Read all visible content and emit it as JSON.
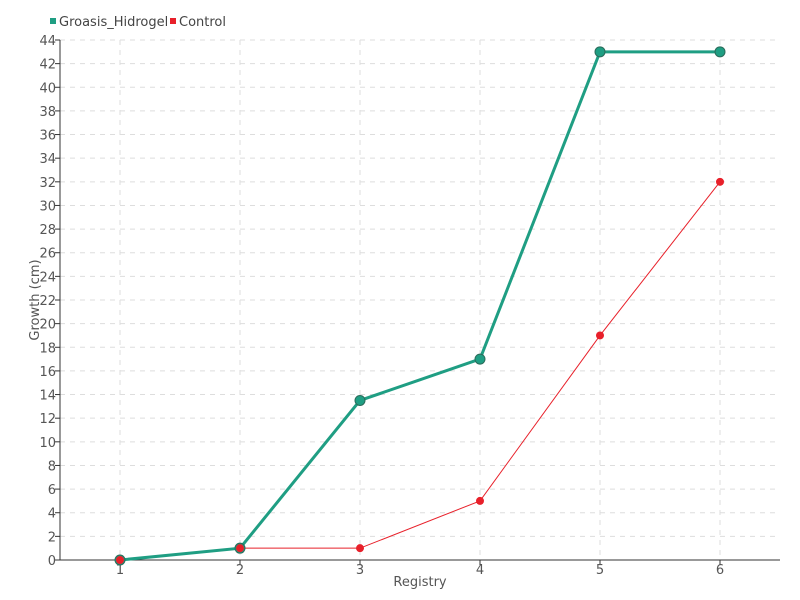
{
  "chart_data": {
    "type": "line",
    "xlabel": "Registry",
    "ylabel": "Growth (cm)",
    "x": [
      1,
      2,
      3,
      4,
      5,
      6
    ],
    "xlim": [
      0.5,
      6.5
    ],
    "ylim": [
      0,
      44
    ],
    "ytick_step": 2,
    "grid": true,
    "legend_position": "top-left",
    "series": [
      {
        "name": "Groasis_Hidrogel",
        "color": "#1f9e83",
        "values": [
          0,
          1,
          13.5,
          17,
          43,
          43
        ]
      },
      {
        "name": "Control",
        "color": "#e8202a",
        "values": [
          0,
          1,
          1,
          5,
          19,
          32
        ]
      }
    ]
  }
}
